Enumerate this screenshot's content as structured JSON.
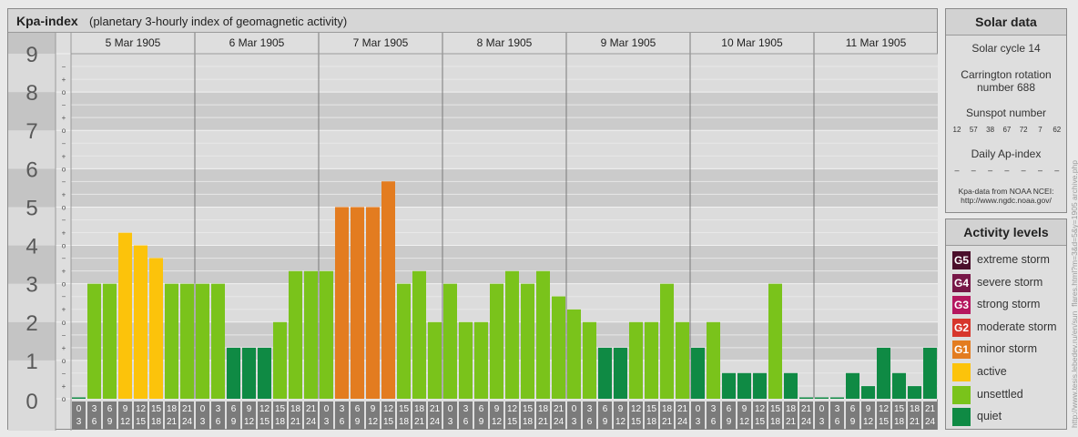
{
  "header": {
    "title": "Kpa-index",
    "subtitle": "(planetary 3-hourly index of geomagnetic activity)"
  },
  "chart_data": {
    "type": "bar",
    "title": "Kpa-index",
    "subtitle": "(planetary 3-hourly index of geomagnetic activity)",
    "ylim": [
      0,
      9
    ],
    "y_ticks": [
      "0",
      "1",
      "2",
      "3",
      "4",
      "5",
      "6",
      "7",
      "8",
      "9"
    ],
    "y_minor_ticks": [
      "o",
      "+",
      "−"
    ],
    "days": [
      "5 Mar 1905",
      "6 Mar 1905",
      "7 Mar 1905",
      "8 Mar 1905",
      "9 Mar 1905",
      "10 Mar 1905",
      "11 Mar 1905"
    ],
    "hour_labels_top": [
      "0",
      "3",
      "6",
      "9",
      "12",
      "15",
      "18",
      "21"
    ],
    "hour_labels_bottom": [
      "3",
      "6",
      "9",
      "12",
      "15",
      "18",
      "21",
      "24"
    ],
    "series": [
      {
        "values": [
          0.0,
          3.0,
          3.0,
          4.33,
          4.0,
          3.67,
          3.0,
          3.0,
          3.0,
          3.0,
          1.33,
          1.33,
          1.33,
          2.0,
          3.33,
          3.33,
          3.33,
          5.0,
          5.0,
          5.0,
          5.67,
          3.0,
          3.33,
          2.0,
          3.0,
          2.0,
          2.0,
          3.0,
          3.33,
          3.0,
          3.33,
          2.67,
          2.33,
          2.0,
          1.33,
          1.33,
          2.0,
          2.0,
          3.0,
          2.0,
          1.33,
          2.0,
          0.67,
          0.67,
          0.67,
          3.0,
          0.67,
          0.0,
          0.0,
          0.0,
          0.67,
          0.33,
          1.33,
          0.67,
          0.33,
          1.33
        ]
      }
    ],
    "grid": true
  },
  "solar": {
    "title": "Solar data",
    "cycle": "Solar cycle 14",
    "carrington_line1": "Carrington rotation",
    "carrington_line2": "number 688",
    "sunspot_label": "Sunspot number",
    "sunspots": [
      "12",
      "57",
      "38",
      "67",
      "72",
      "7",
      "62"
    ],
    "ap_label": "Daily Ap-index",
    "ap_values": [
      "–",
      "–",
      "–",
      "–",
      "–",
      "–",
      "–"
    ],
    "source_line1": "Kpa-data from NOAA NCEI:",
    "source_line2": "http://www.ngdc.noaa.gov/"
  },
  "levels": {
    "title": "Activity levels",
    "items": [
      {
        "code": "G5",
        "label": "extreme storm",
        "color": "#4b0f2b"
      },
      {
        "code": "G4",
        "label": "severe storm",
        "color": "#771747"
      },
      {
        "code": "G3",
        "label": "strong storm",
        "color": "#b5175f"
      },
      {
        "code": "G2",
        "label": "moderate storm",
        "color": "#d7362c"
      },
      {
        "code": "G1",
        "label": "minor storm",
        "color": "#e37c20"
      },
      {
        "code": "",
        "label": "active",
        "color": "#fcc30b"
      },
      {
        "code": "",
        "label": "unsettled",
        "color": "#7ac31b"
      },
      {
        "code": "",
        "label": "quiet",
        "color": "#0f8a44"
      }
    ]
  },
  "colors": {
    "quiet": "#0f8a44",
    "unsettled": "#7ac31b",
    "active": "#fcc30b",
    "minor": "#e37c20",
    "moderate": "#d7362c"
  },
  "credit": "http://www.tesis.lebedev.ru/en/sun_flares.html?m=3&d=5&y=1905 archive.php"
}
